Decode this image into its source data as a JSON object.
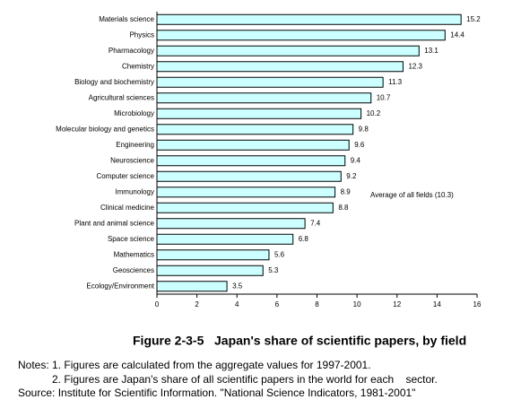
{
  "chart_data": {
    "type": "bar",
    "orientation": "horizontal",
    "title": "Figure 2-3-5   Japan's share of scientific papers, by field",
    "categories": [
      "Materials science",
      "Physics",
      "Pharmacology",
      "Chemistry",
      "Biology and biochemistry",
      "Agricultural sciences",
      "Microbiology",
      "Molecular biology and genetics",
      "Engineering",
      "Neuroscience",
      "Computer science",
      "Immunology",
      "Clinical medicine",
      "Plant and animal science",
      "Space science",
      "Mathematics",
      "Geosciences",
      "Ecology/Environment"
    ],
    "values": [
      15.2,
      14.4,
      13.1,
      12.3,
      11.3,
      10.7,
      10.2,
      9.8,
      9.6,
      9.4,
      9.2,
      8.9,
      8.8,
      7.4,
      6.8,
      5.6,
      5.3,
      3.5
    ],
    "color": "#ccffff",
    "xlim": [
      0,
      16
    ],
    "xticks": [
      0,
      2,
      4,
      6,
      8,
      10,
      12,
      14,
      16
    ],
    "annotation": "Average of all fields (10.3)"
  },
  "notes": [
    "Notes: 1. Figures are calculated from the aggregate values for 1997-2001.",
    "2. Figures are Japan's share of all scientific papers in the world for each    sector.",
    "Source: Institute for Scientific Information. \"National Science Indicators, 1981-2001\""
  ]
}
